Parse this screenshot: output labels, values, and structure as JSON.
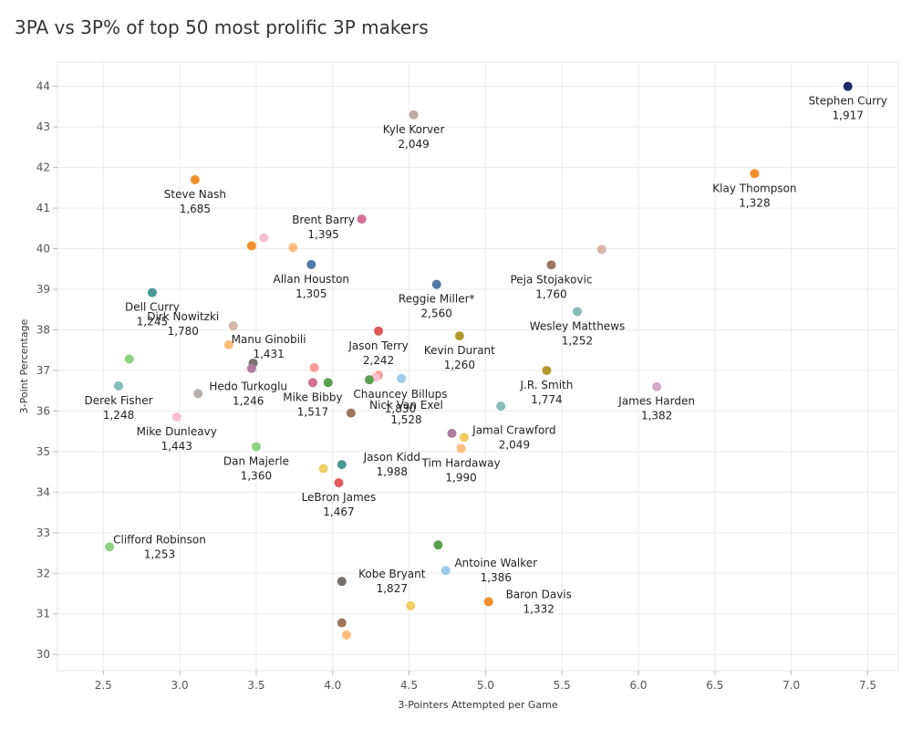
{
  "chart_data": {
    "type": "scatter",
    "title": "3PA vs 3P% of top 50 most prolific 3P makers",
    "xlabel": "3-Pointers Attempted per Game",
    "ylabel": "3-Point Percentage",
    "xlim": [
      2.2,
      7.7
    ],
    "ylim": [
      29.6,
      44.6
    ],
    "xticks": [
      "2.5",
      "3.0",
      "3.5",
      "4.0",
      "4.5",
      "5.0",
      "5.5",
      "6.0",
      "6.5",
      "7.0",
      "7.5"
    ],
    "yticks": [
      "30",
      "31",
      "32",
      "33",
      "34",
      "35",
      "36",
      "37",
      "38",
      "39",
      "40",
      "41",
      "42",
      "43",
      "44"
    ],
    "grid": true,
    "points": [
      {
        "x": 7.37,
        "y": 44.0,
        "color": "#1f2a6b",
        "name": "Stephen Curry",
        "made": "1,917",
        "label_pos": "below"
      },
      {
        "x": 4.53,
        "y": 43.3,
        "color": "#bcaaa4",
        "name": "Kyle Korver",
        "made": "2,049",
        "label_pos": "below"
      },
      {
        "x": 6.76,
        "y": 41.85,
        "color": "#f28e2b",
        "name": "Klay Thompson",
        "made": "1,328",
        "label_pos": "below"
      },
      {
        "x": 3.1,
        "y": 41.7,
        "color": "#f28e2b",
        "name": "Steve Nash",
        "made": "1,685",
        "label_pos": "below"
      },
      {
        "x": 4.19,
        "y": 40.73,
        "color": "#d37295",
        "name": "Brent Barry",
        "made": "1,395",
        "label_pos": "left"
      },
      {
        "x": 3.47,
        "y": 40.07,
        "color": "#f28e2b",
        "name": "",
        "made": "",
        "label_pos": "none"
      },
      {
        "x": 3.55,
        "y": 40.27,
        "color": "#fabfd2",
        "name": "",
        "made": "",
        "label_pos": "none"
      },
      {
        "x": 3.74,
        "y": 40.03,
        "color": "#ffbe7d",
        "name": "",
        "made": "",
        "label_pos": "none"
      },
      {
        "x": 5.76,
        "y": 39.98,
        "color": "#d7b5a6",
        "name": "",
        "made": "",
        "label_pos": "none"
      },
      {
        "x": 3.86,
        "y": 39.61,
        "color": "#4e79a7",
        "name": "Allan Houston",
        "made": "1,305",
        "label_pos": "below"
      },
      {
        "x": 5.43,
        "y": 39.6,
        "color": "#9d7660",
        "name": "Peja Stojakovic",
        "made": "1,760",
        "label_pos": "below"
      },
      {
        "x": 4.68,
        "y": 39.12,
        "color": "#4e79a7",
        "name": "Reggie Miller*",
        "made": "2,560",
        "label_pos": "below"
      },
      {
        "x": 2.82,
        "y": 38.92,
        "color": "#499894",
        "name": "Dell Curry",
        "made": "1,245",
        "label_pos": "below"
      },
      {
        "x": 5.6,
        "y": 38.45,
        "color": "#86bcb6",
        "name": "Wesley Matthews",
        "made": "1,252",
        "label_pos": "below"
      },
      {
        "x": 3.35,
        "y": 38.1,
        "color": "#d7b5a6",
        "name": "",
        "made": "",
        "label_pos": "none"
      },
      {
        "x": 4.3,
        "y": 37.97,
        "color": "#e15759",
        "name": "Jason Terry",
        "made": "2,242",
        "label_pos": "below"
      },
      {
        "x": 4.83,
        "y": 37.85,
        "color": "#b6992d",
        "name": "Kevin Durant",
        "made": "1,260",
        "label_pos": "below"
      },
      {
        "x": 3.32,
        "y": 37.63,
        "color": "#ffbe7d",
        "name": "Dirk Nowitzki",
        "made": "1,780",
        "label_pos": "upper-left"
      },
      {
        "x": 2.67,
        "y": 37.28,
        "color": "#8cd17d",
        "name": "",
        "made": "",
        "label_pos": "none"
      },
      {
        "x": 3.48,
        "y": 37.18,
        "color": "#79706e",
        "name": "",
        "made": "",
        "label_pos": "none"
      },
      {
        "x": 3.47,
        "y": 37.05,
        "color": "#b07aa1",
        "name": "",
        "made": "",
        "label_pos": "none"
      },
      {
        "x": 3.88,
        "y": 37.07,
        "color": "#ff9d9a",
        "name": "Manu Ginobili",
        "made": "1,431",
        "label_pos": "upper-left"
      },
      {
        "x": 5.4,
        "y": 37.0,
        "color": "#b6992d",
        "name": "J.R. Smith",
        "made": "1,774",
        "label_pos": "below"
      },
      {
        "x": 4.3,
        "y": 36.88,
        "color": "#ff9d9a",
        "name": "",
        "made": "",
        "label_pos": "none"
      },
      {
        "x": 4.45,
        "y": 36.8,
        "color": "#a0cbe8",
        "name": "",
        "made": "",
        "label_pos": "none"
      },
      {
        "x": 4.28,
        "y": 36.83,
        "color": "#fabfd2",
        "name": "",
        "made": "",
        "label_pos": "none"
      },
      {
        "x": 4.24,
        "y": 36.77,
        "color": "#59a14f",
        "name": "Chauncey Billups",
        "made": "1,830",
        "label_pos": "below-right"
      },
      {
        "x": 3.87,
        "y": 36.7,
        "color": "#d37295",
        "name": "Mike Bibby",
        "made": "1,517",
        "label_pos": "below"
      },
      {
        "x": 3.97,
        "y": 36.7,
        "color": "#59a14f",
        "name": "",
        "made": "",
        "label_pos": "none"
      },
      {
        "x": 2.6,
        "y": 36.62,
        "color": "#86bcb6",
        "name": "Derek Fisher",
        "made": "1,248",
        "label_pos": "below"
      },
      {
        "x": 6.12,
        "y": 36.6,
        "color": "#d4a6c8",
        "name": "James Harden",
        "made": "1,382",
        "label_pos": "below"
      },
      {
        "x": 3.12,
        "y": 36.43,
        "color": "#bab0ac",
        "name": "Hedo Turkoglu",
        "made": "1,246",
        "label_pos": "upper-right"
      },
      {
        "x": 5.1,
        "y": 36.12,
        "color": "#86bcb6",
        "name": "",
        "made": "",
        "label_pos": "none"
      },
      {
        "x": 4.12,
        "y": 35.95,
        "color": "#9d7660",
        "name": "",
        "made": "",
        "label_pos": "none"
      },
      {
        "x": 2.98,
        "y": 35.85,
        "color": "#fabfd2",
        "name": "Mike Dunleavy",
        "made": "1,443",
        "label_pos": "below"
      },
      {
        "x": 4.78,
        "y": 35.45,
        "color": "#b07aa1",
        "name": "Nick Van Exel",
        "made": "1,528",
        "label_pos": "upper-left"
      },
      {
        "x": 4.86,
        "y": 35.35,
        "color": "#f1ce63",
        "name": "Jamal Crawford",
        "made": "2,049",
        "label_pos": "upper-right"
      },
      {
        "x": 3.5,
        "y": 35.12,
        "color": "#8cd17d",
        "name": "Dan Majerle",
        "made": "1,360",
        "label_pos": "below"
      },
      {
        "x": 4.84,
        "y": 35.08,
        "color": "#ffbe7d",
        "name": "Tim Hardaway",
        "made": "1,990",
        "label_pos": "below"
      },
      {
        "x": 4.06,
        "y": 34.68,
        "color": "#499894",
        "name": "Jason Kidd",
        "made": "1,988",
        "label_pos": "upper-right"
      },
      {
        "x": 3.94,
        "y": 34.58,
        "color": "#f1ce63",
        "name": "",
        "made": "",
        "label_pos": "none"
      },
      {
        "x": 4.04,
        "y": 34.23,
        "color": "#e15759",
        "name": "LeBron James",
        "made": "1,467",
        "label_pos": "below"
      },
      {
        "x": 2.54,
        "y": 32.65,
        "color": "#8cd17d",
        "name": "Clifford Robinson",
        "made": "1,253",
        "label_pos": "upper-right"
      },
      {
        "x": 4.69,
        "y": 32.7,
        "color": "#59a14f",
        "name": "",
        "made": "",
        "label_pos": "none"
      },
      {
        "x": 4.74,
        "y": 32.07,
        "color": "#a0cbe8",
        "name": "Antoine Walker",
        "made": "1,386",
        "label_pos": "upper-right"
      },
      {
        "x": 4.06,
        "y": 31.8,
        "color": "#79706e",
        "name": "Kobe Bryant",
        "made": "1,827",
        "label_pos": "upper-right"
      },
      {
        "x": 5.02,
        "y": 31.3,
        "color": "#f28e2b",
        "name": "Baron Davis",
        "made": "1,332",
        "label_pos": "upper-right"
      },
      {
        "x": 4.51,
        "y": 31.2,
        "color": "#f1ce63",
        "name": "",
        "made": "",
        "label_pos": "none"
      },
      {
        "x": 4.06,
        "y": 30.78,
        "color": "#9d7660",
        "name": "",
        "made": "",
        "label_pos": "none"
      },
      {
        "x": 4.09,
        "y": 30.48,
        "color": "#ffbe7d",
        "name": "",
        "made": "",
        "label_pos": "none"
      }
    ]
  }
}
